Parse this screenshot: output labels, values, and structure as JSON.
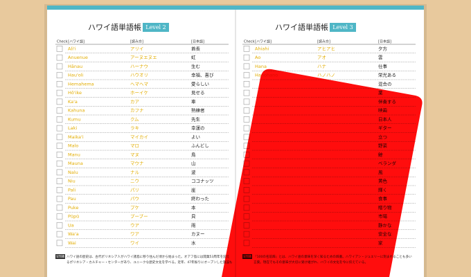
{
  "pages": [
    {
      "title": "ハワイ語単語帳",
      "level": "Level 2",
      "headers": {
        "check": "Check",
        "hawaiian": "[ハワイ語]",
        "reading": "[読み方]",
        "japanese": "[日本語]"
      },
      "rows": [
        {
          "hawaiian": "Ali'i",
          "reading": "アリイ",
          "japanese": "酋長"
        },
        {
          "hawaiian": "Anuenue",
          "reading": "アーヌエヌエ",
          "japanese": "虹"
        },
        {
          "hawaiian": "Hānau",
          "reading": "ハーナウ",
          "japanese": "生む"
        },
        {
          "hawaiian": "Hau'oli",
          "reading": "ハウオリ",
          "japanese": "幸福、喜び"
        },
        {
          "hawaiian": "Hemahema",
          "reading": "ヘマヘマ",
          "japanese": "愛らしい"
        },
        {
          "hawaiian": "Hō'ike",
          "reading": "ホーイケ",
          "japanese": "見せる"
        },
        {
          "hawaiian": "Ka'a",
          "reading": "カア",
          "japanese": "車"
        },
        {
          "hawaiian": "Kahuna",
          "reading": "カフナ",
          "japanese": "熟練者"
        },
        {
          "hawaiian": "Kumu",
          "reading": "クム",
          "japanese": "先生"
        },
        {
          "hawaiian": "Laki",
          "reading": "ラキ",
          "japanese": "幸運の"
        },
        {
          "hawaiian": "Maika'i",
          "reading": "マイカイ",
          "japanese": "よい"
        },
        {
          "hawaiian": "Malo",
          "reading": "マロ",
          "japanese": "ふんどし"
        },
        {
          "hawaiian": "Manu",
          "reading": "マヌ",
          "japanese": "鳥"
        },
        {
          "hawaiian": "Mauna",
          "reading": "マウナ",
          "japanese": "山"
        },
        {
          "hawaiian": "Nalu",
          "reading": "ナル",
          "japanese": "波"
        },
        {
          "hawaiian": "Niu",
          "reading": "ニウ",
          "japanese": "ココナッツ"
        },
        {
          "hawaiian": "Pali",
          "reading": "パリ",
          "japanese": "崖"
        },
        {
          "hawaiian": "Pau",
          "reading": "パウ",
          "japanese": "終わった"
        },
        {
          "hawaiian": "Puke",
          "reading": "プケ",
          "japanese": "本"
        },
        {
          "hawaiian": "Pūpū",
          "reading": "プープー",
          "japanese": "貝"
        },
        {
          "hawaiian": "Ua",
          "reading": "ウア",
          "japanese": "雨"
        },
        {
          "hawaiian": "Wa'a",
          "reading": "ワア",
          "japanese": "カヌー"
        },
        {
          "hawaiian": "Wai",
          "reading": "ワイ",
          "japanese": "水"
        }
      ],
      "note_label": "豆知識",
      "note": [
        "ハワイ語の歴史は、古代ポリネシア人がハワイ諸島に移り住んだ頃から始まった。オアフ島には開業53周年を迎え",
        "るポリネシア・カルチャー・センターがあり、ユニークな歴史文化を学べる。近年、47年振りにオープンした施設も"
      ]
    },
    {
      "title": "ハワイ語単語帳",
      "level": "Level 3",
      "headers": {
        "check": "Check",
        "hawaiian": "[ハワイ語]",
        "reading": "[読み方]",
        "japanese": "[日本語]"
      },
      "rows": [
        {
          "hawaiian": "Ahiahi",
          "reading": "アヒアヒ",
          "japanese": "夕方"
        },
        {
          "hawaiian": "Ao",
          "reading": "アオ",
          "japanese": "雲"
        },
        {
          "hawaiian": "Hana",
          "reading": "ハナ",
          "japanese": "仕事"
        },
        {
          "hawaiian": "Hanohano",
          "reading": "ハノハノ",
          "japanese": "栄光ある"
        },
        {
          "japanese": "混合の"
        },
        {
          "japanese": "薬"
        },
        {
          "japanese": "伴奏する"
        },
        {
          "japanese": "映画"
        },
        {
          "japanese": "日本人"
        },
        {
          "japanese": "ギター"
        },
        {
          "japanese": "立つ"
        },
        {
          "japanese": "野菜"
        },
        {
          "japanese": "鯨"
        },
        {
          "japanese": "ベランダ"
        },
        {
          "japanese": "風"
        },
        {
          "japanese": "黄色"
        },
        {
          "japanese": "輝く"
        },
        {
          "japanese": "食事"
        },
        {
          "japanese": "贈り物"
        },
        {
          "japanese": "市場"
        },
        {
          "japanese": "静かな"
        },
        {
          "japanese": "安全な"
        },
        {
          "japanese": "家"
        }
      ],
      "note_label": "豆知識",
      "note": [
        "『100の名前辞』とは、ハワイ語の意味を深く知るための辞書。ハワイアン・ジュエリーに刻まれることも多い",
        "言葉。現在でもその意味が大切に受け継がれ、ハワイの文化を今に伝えている。"
      ]
    }
  ]
}
